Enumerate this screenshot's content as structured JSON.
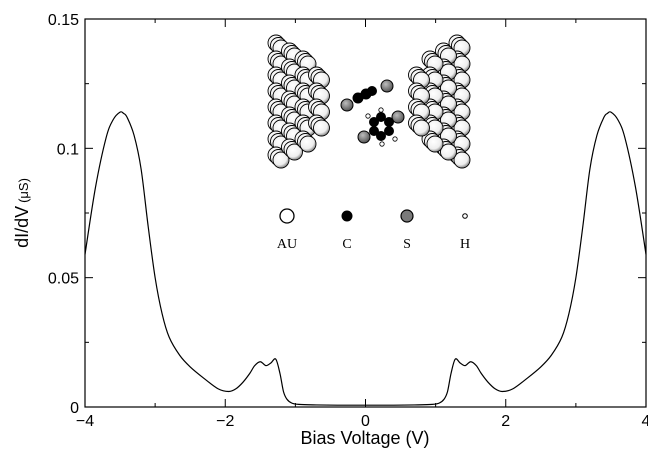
{
  "chart_data": {
    "type": "line",
    "xlabel": "Bias Voltage (V)",
    "ylabel_main": "dI/dV",
    "ylabel_unit": "(μS)",
    "xlim": [
      -4,
      4
    ],
    "ylim": [
      0,
      0.15
    ],
    "x_ticks": [
      {
        "value": -4,
        "label": "−4"
      },
      {
        "value": -2,
        "label": "−2"
      },
      {
        "value": 0,
        "label": "0"
      },
      {
        "value": 2,
        "label": "2"
      },
      {
        "value": 4,
        "label": "4"
      }
    ],
    "y_ticks": [
      {
        "value": 0,
        "label": "0"
      },
      {
        "value": 0.05,
        "label": "0.05"
      },
      {
        "value": 0.1,
        "label": "0.1"
      },
      {
        "value": 0.15,
        "label": "0.15"
      }
    ],
    "grid": false,
    "series": [
      {
        "color": "#000000",
        "x": [
          -4.0,
          -3.85,
          -3.7,
          -3.6,
          -3.5,
          -3.45,
          -3.4,
          -3.3,
          -3.2,
          -3.1,
          -3.0,
          -2.9,
          -2.8,
          -2.65,
          -2.5,
          -2.3,
          -2.1,
          -1.95,
          -1.85,
          -1.75,
          -1.65,
          -1.58,
          -1.5,
          -1.42,
          -1.35,
          -1.28,
          -1.22,
          -1.17,
          -1.12,
          -1.05,
          -0.95,
          -0.7,
          -0.4,
          0.0,
          0.4,
          0.7,
          0.95,
          1.05,
          1.12,
          1.17,
          1.22,
          1.28,
          1.35,
          1.42,
          1.5,
          1.58,
          1.65,
          1.75,
          1.85,
          1.95,
          2.1,
          2.3,
          2.5,
          2.65,
          2.8,
          2.9,
          3.0,
          3.1,
          3.2,
          3.3,
          3.4,
          3.45,
          3.5,
          3.6,
          3.7,
          3.85,
          4.0
        ],
        "y": [
          0.059,
          0.085,
          0.104,
          0.111,
          0.114,
          0.1135,
          0.112,
          0.105,
          0.092,
          0.07,
          0.05,
          0.036,
          0.027,
          0.02,
          0.0155,
          0.011,
          0.007,
          0.006,
          0.007,
          0.0095,
          0.013,
          0.016,
          0.0175,
          0.016,
          0.017,
          0.0185,
          0.013,
          0.006,
          0.003,
          0.0015,
          0.001,
          0.0008,
          0.0007,
          0.0007,
          0.0007,
          0.0008,
          0.001,
          0.0015,
          0.003,
          0.006,
          0.013,
          0.0185,
          0.017,
          0.016,
          0.0175,
          0.016,
          0.013,
          0.0095,
          0.007,
          0.006,
          0.007,
          0.011,
          0.0155,
          0.02,
          0.027,
          0.036,
          0.05,
          0.07,
          0.092,
          0.105,
          0.112,
          0.1135,
          0.114,
          0.111,
          0.104,
          0.085,
          0.059
        ]
      }
    ]
  },
  "inset": {
    "legend": [
      {
        "label": "AU",
        "fill": "#ffffff"
      },
      {
        "label": "C",
        "fill": "#000000"
      },
      {
        "label": "S",
        "fill": "#7a7a7a"
      },
      {
        "label": "H",
        "fill": "#ffffff"
      }
    ]
  }
}
